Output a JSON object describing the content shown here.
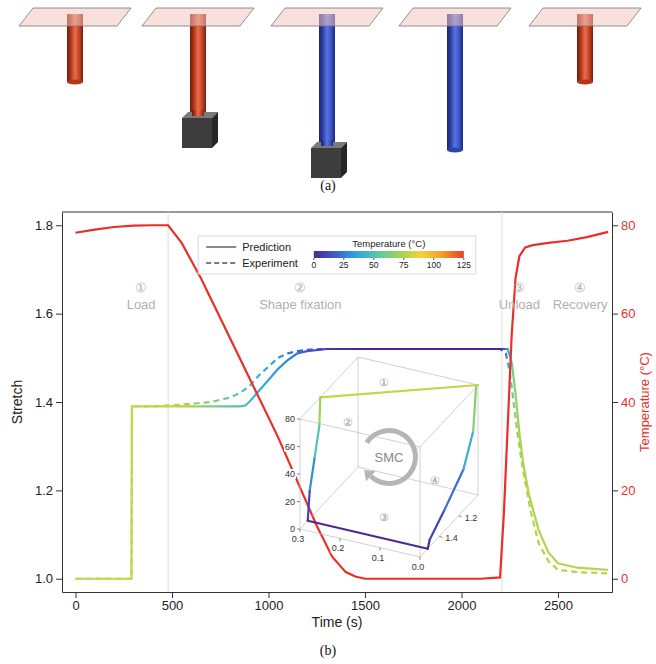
{
  "figure": {
    "panel_labels": [
      "(a)",
      "(b)"
    ]
  },
  "chart_data": {
    "type": "line",
    "xlabel": "Time (s)",
    "ylabel": "Stretch",
    "y2label": "Temperature (°C)",
    "xlim": [
      -70,
      2780
    ],
    "xticks": [
      0,
      500,
      1000,
      1500,
      2000,
      2500
    ],
    "ylim": [
      0.97,
      1.83
    ],
    "yticks": [
      {
        "value": 1,
        "label": "1.0"
      },
      1.2,
      1.4,
      1.6,
      1.8
    ],
    "y2lim": [
      -3,
      83
    ],
    "y2ticks": [
      0,
      20,
      40,
      60,
      80
    ],
    "legend": "upper center",
    "series": [
      {
        "name": "Prediction",
        "line_style": "solid",
        "x": [
          0,
          100,
          200,
          290,
          292,
          300,
          400,
          500,
          600,
          700,
          800,
          850,
          880,
          900,
          950,
          1000,
          1050,
          1100,
          1150,
          1200,
          1300,
          1400,
          1600,
          1800,
          2000,
          2200,
          2240,
          2260,
          2280,
          2300,
          2320,
          2350,
          2400,
          2450,
          2500,
          2600,
          2760
        ],
        "values": [
          1.0,
          1.0,
          1.0,
          1.0,
          1.39,
          1.39,
          1.39,
          1.39,
          1.39,
          1.39,
          1.39,
          1.39,
          1.392,
          1.4,
          1.425,
          1.45,
          1.475,
          1.495,
          1.51,
          1.515,
          1.52,
          1.52,
          1.52,
          1.52,
          1.52,
          1.52,
          1.52,
          1.49,
          1.42,
          1.33,
          1.26,
          1.19,
          1.11,
          1.06,
          1.035,
          1.025,
          1.02
        ]
      },
      {
        "name": "Experiment",
        "line_style": "dashed",
        "x": [
          0,
          100,
          200,
          290,
          293,
          300,
          400,
          500,
          600,
          700,
          800,
          850,
          900,
          950,
          1000,
          1050,
          1100,
          1150,
          1200,
          1300,
          1400,
          1600,
          1800,
          2000,
          2200,
          2230,
          2250,
          2270,
          2290,
          2310,
          2330,
          2360,
          2400,
          2450,
          2500,
          2600,
          2760
        ],
        "values": [
          1.0,
          1.0,
          1.0,
          1.0,
          1.39,
          1.39,
          1.39,
          1.393,
          1.396,
          1.4,
          1.41,
          1.42,
          1.435,
          1.46,
          1.48,
          1.5,
          1.51,
          1.515,
          1.518,
          1.52,
          1.52,
          1.52,
          1.52,
          1.52,
          1.52,
          1.51,
          1.47,
          1.4,
          1.33,
          1.27,
          1.22,
          1.15,
          1.08,
          1.04,
          1.02,
          1.015,
          1.012
        ]
      },
      {
        "name": "Temperature (°C)",
        "axis": "y2",
        "color": "#e8302a",
        "line_style": "solid",
        "x": [
          0,
          100,
          200,
          300,
          400,
          480,
          550,
          650,
          750,
          850,
          950,
          1050,
          1150,
          1250,
          1330,
          1400,
          1450,
          1500,
          1800,
          2100,
          2200,
          2220,
          2240,
          2260,
          2280,
          2300,
          2330,
          2370,
          2450,
          2550,
          2650,
          2760
        ],
        "values": [
          78.3,
          79.0,
          79.6,
          79.9,
          80,
          80,
          76,
          68,
          59,
          50,
          41,
          32,
          22,
          12,
          5,
          1.5,
          0.5,
          0,
          0,
          0,
          0.3,
          15,
          35,
          55,
          68,
          73,
          75,
          75.5,
          76,
          76.5,
          77.3,
          78.5
        ]
      }
    ],
    "colorbar": {
      "title": "Temperature (°C)",
      "range": [
        0,
        125
      ],
      "ticks": [
        0,
        25,
        50,
        75,
        100,
        125
      ],
      "colors": [
        "#4b2991",
        "#3f5bd0",
        "#2fa5e0",
        "#5cc8a8",
        "#9fd356",
        "#f3d23a",
        "#f59a2c",
        "#e8402a"
      ]
    },
    "phase_boundaries": [
      480,
      2210
    ],
    "phases": [
      {
        "number": "①",
        "label": "Load",
        "x": 340,
        "y": 1.65
      },
      {
        "number": "②",
        "label": "Shape fixation",
        "x": 1165,
        "y": 1.65
      },
      {
        "number": "③",
        "label": "Unload",
        "x": 2300,
        "y": 1.65
      },
      {
        "number": "④",
        "label": "Recovery",
        "x": 2615,
        "y": 1.65
      }
    ],
    "inset": {
      "label": "SMC",
      "stress_lim": [
        0,
        0.3
      ],
      "stretch_lim": [
        1.0,
        1.6
      ],
      "temperature_lim": [
        0,
        80
      ],
      "stress_ticks": [
        0.3,
        0.2,
        0.1,
        {
          "value": 0,
          "label": "0.0"
        }
      ],
      "stretch_ticks": [
        1.2,
        1.4
      ],
      "temperature_ticks": [
        0,
        20,
        40,
        60,
        80
      ],
      "stress": [
        0,
        0.3,
        0.3,
        0.3,
        0.3,
        0.3,
        0,
        0,
        0,
        0,
        0,
        0
      ],
      "stretch": [
        1.0,
        1.39,
        1.4,
        1.45,
        1.5,
        1.52,
        1.52,
        1.5,
        1.35,
        1.15,
        1.05,
        1.02
      ],
      "temperature": [
        80,
        80,
        60,
        40,
        20,
        0,
        0,
        5,
        15,
        30,
        50,
        80
      ],
      "phase_labels": [
        {
          "text": "①",
          "stress": 0.2,
          "stretch": 1.15,
          "temperature": 80
        },
        {
          "text": "②",
          "stress": 0.3,
          "stretch": 1.1,
          "temperature": 40
        },
        {
          "text": "③",
          "stress": 0.15,
          "stretch": 1.35,
          "temperature": 0
        },
        {
          "text": "④",
          "stress": 0,
          "stretch": 1.45,
          "temperature": 45
        }
      ]
    }
  }
}
